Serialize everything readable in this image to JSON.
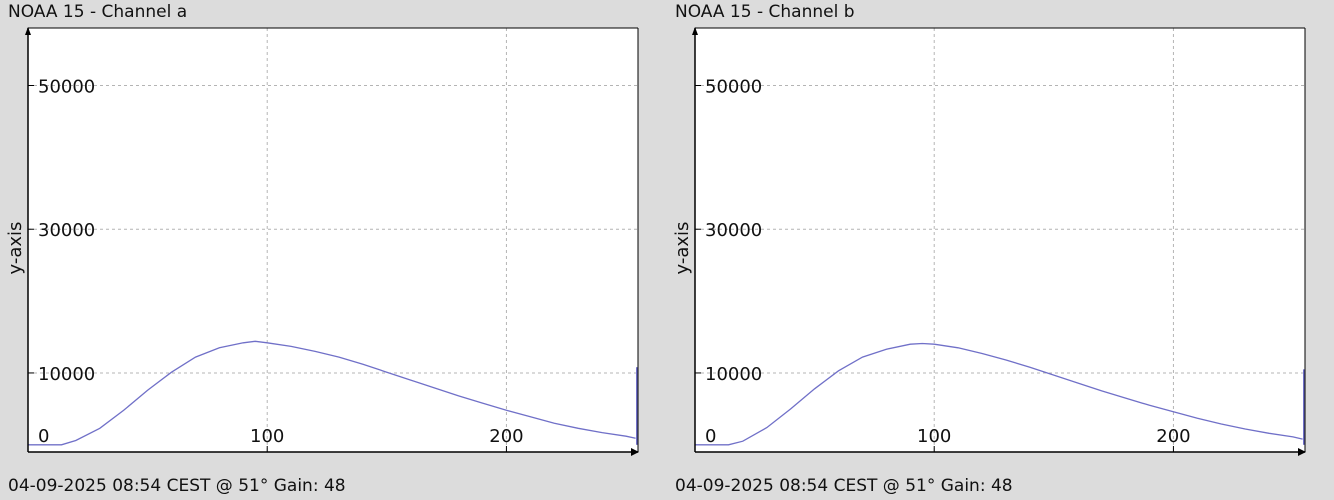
{
  "colors": {
    "background": "#dcdcdc",
    "plot_background": "#ffffff",
    "series": "#7070c8",
    "grid": "#b4b4b4",
    "axis": "#000000"
  },
  "chart_data": [
    {
      "type": "line",
      "title": "NOAA 15 - Channel a",
      "footer": "04-09-2025 08:54 CEST @ 51° Gain: 48",
      "xlabel": "",
      "ylabel": "y-axis",
      "xlim": [
        0,
        255
      ],
      "ylim": [
        -1000,
        58000
      ],
      "x_ticks": [
        0,
        100,
        200
      ],
      "y_ticks": [
        10000,
        30000,
        50000
      ],
      "grid": true,
      "x": [
        0,
        14,
        20,
        30,
        40,
        50,
        60,
        70,
        80,
        90,
        95,
        100,
        110,
        120,
        130,
        140,
        150,
        160,
        170,
        180,
        190,
        200,
        210,
        220,
        230,
        240,
        250,
        254
      ],
      "series": [
        {
          "values": [
            0,
            0,
            600,
            2300,
            4800,
            7600,
            10100,
            12200,
            13500,
            14200,
            14400,
            14200,
            13700,
            13000,
            12200,
            11200,
            10100,
            9000,
            7900,
            6800,
            5800,
            4800,
            3900,
            3000,
            2300,
            1700,
            1200,
            900
          ]
        }
      ],
      "spike": {
        "x": 255,
        "y": 10800
      }
    },
    {
      "type": "line",
      "title": "NOAA 15 - Channel b",
      "footer": "04-09-2025 08:54 CEST @ 51° Gain: 48",
      "xlabel": "",
      "ylabel": "y-axis",
      "xlim": [
        0,
        255
      ],
      "ylim": [
        -1000,
        58000
      ],
      "x_ticks": [
        0,
        100,
        200
      ],
      "y_ticks": [
        10000,
        30000,
        50000
      ],
      "grid": true,
      "x": [
        0,
        14,
        20,
        30,
        40,
        50,
        60,
        70,
        80,
        90,
        95,
        100,
        110,
        120,
        130,
        140,
        150,
        160,
        170,
        180,
        190,
        200,
        210,
        220,
        230,
        240,
        250,
        254
      ],
      "series": [
        {
          "values": [
            0,
            0,
            500,
            2400,
            5000,
            7800,
            10300,
            12200,
            13300,
            14000,
            14100,
            14000,
            13500,
            12700,
            11800,
            10800,
            9700,
            8600,
            7500,
            6500,
            5500,
            4600,
            3700,
            2900,
            2200,
            1600,
            1100,
            800
          ]
        }
      ],
      "spike": {
        "x": 255,
        "y": 10500
      }
    }
  ]
}
